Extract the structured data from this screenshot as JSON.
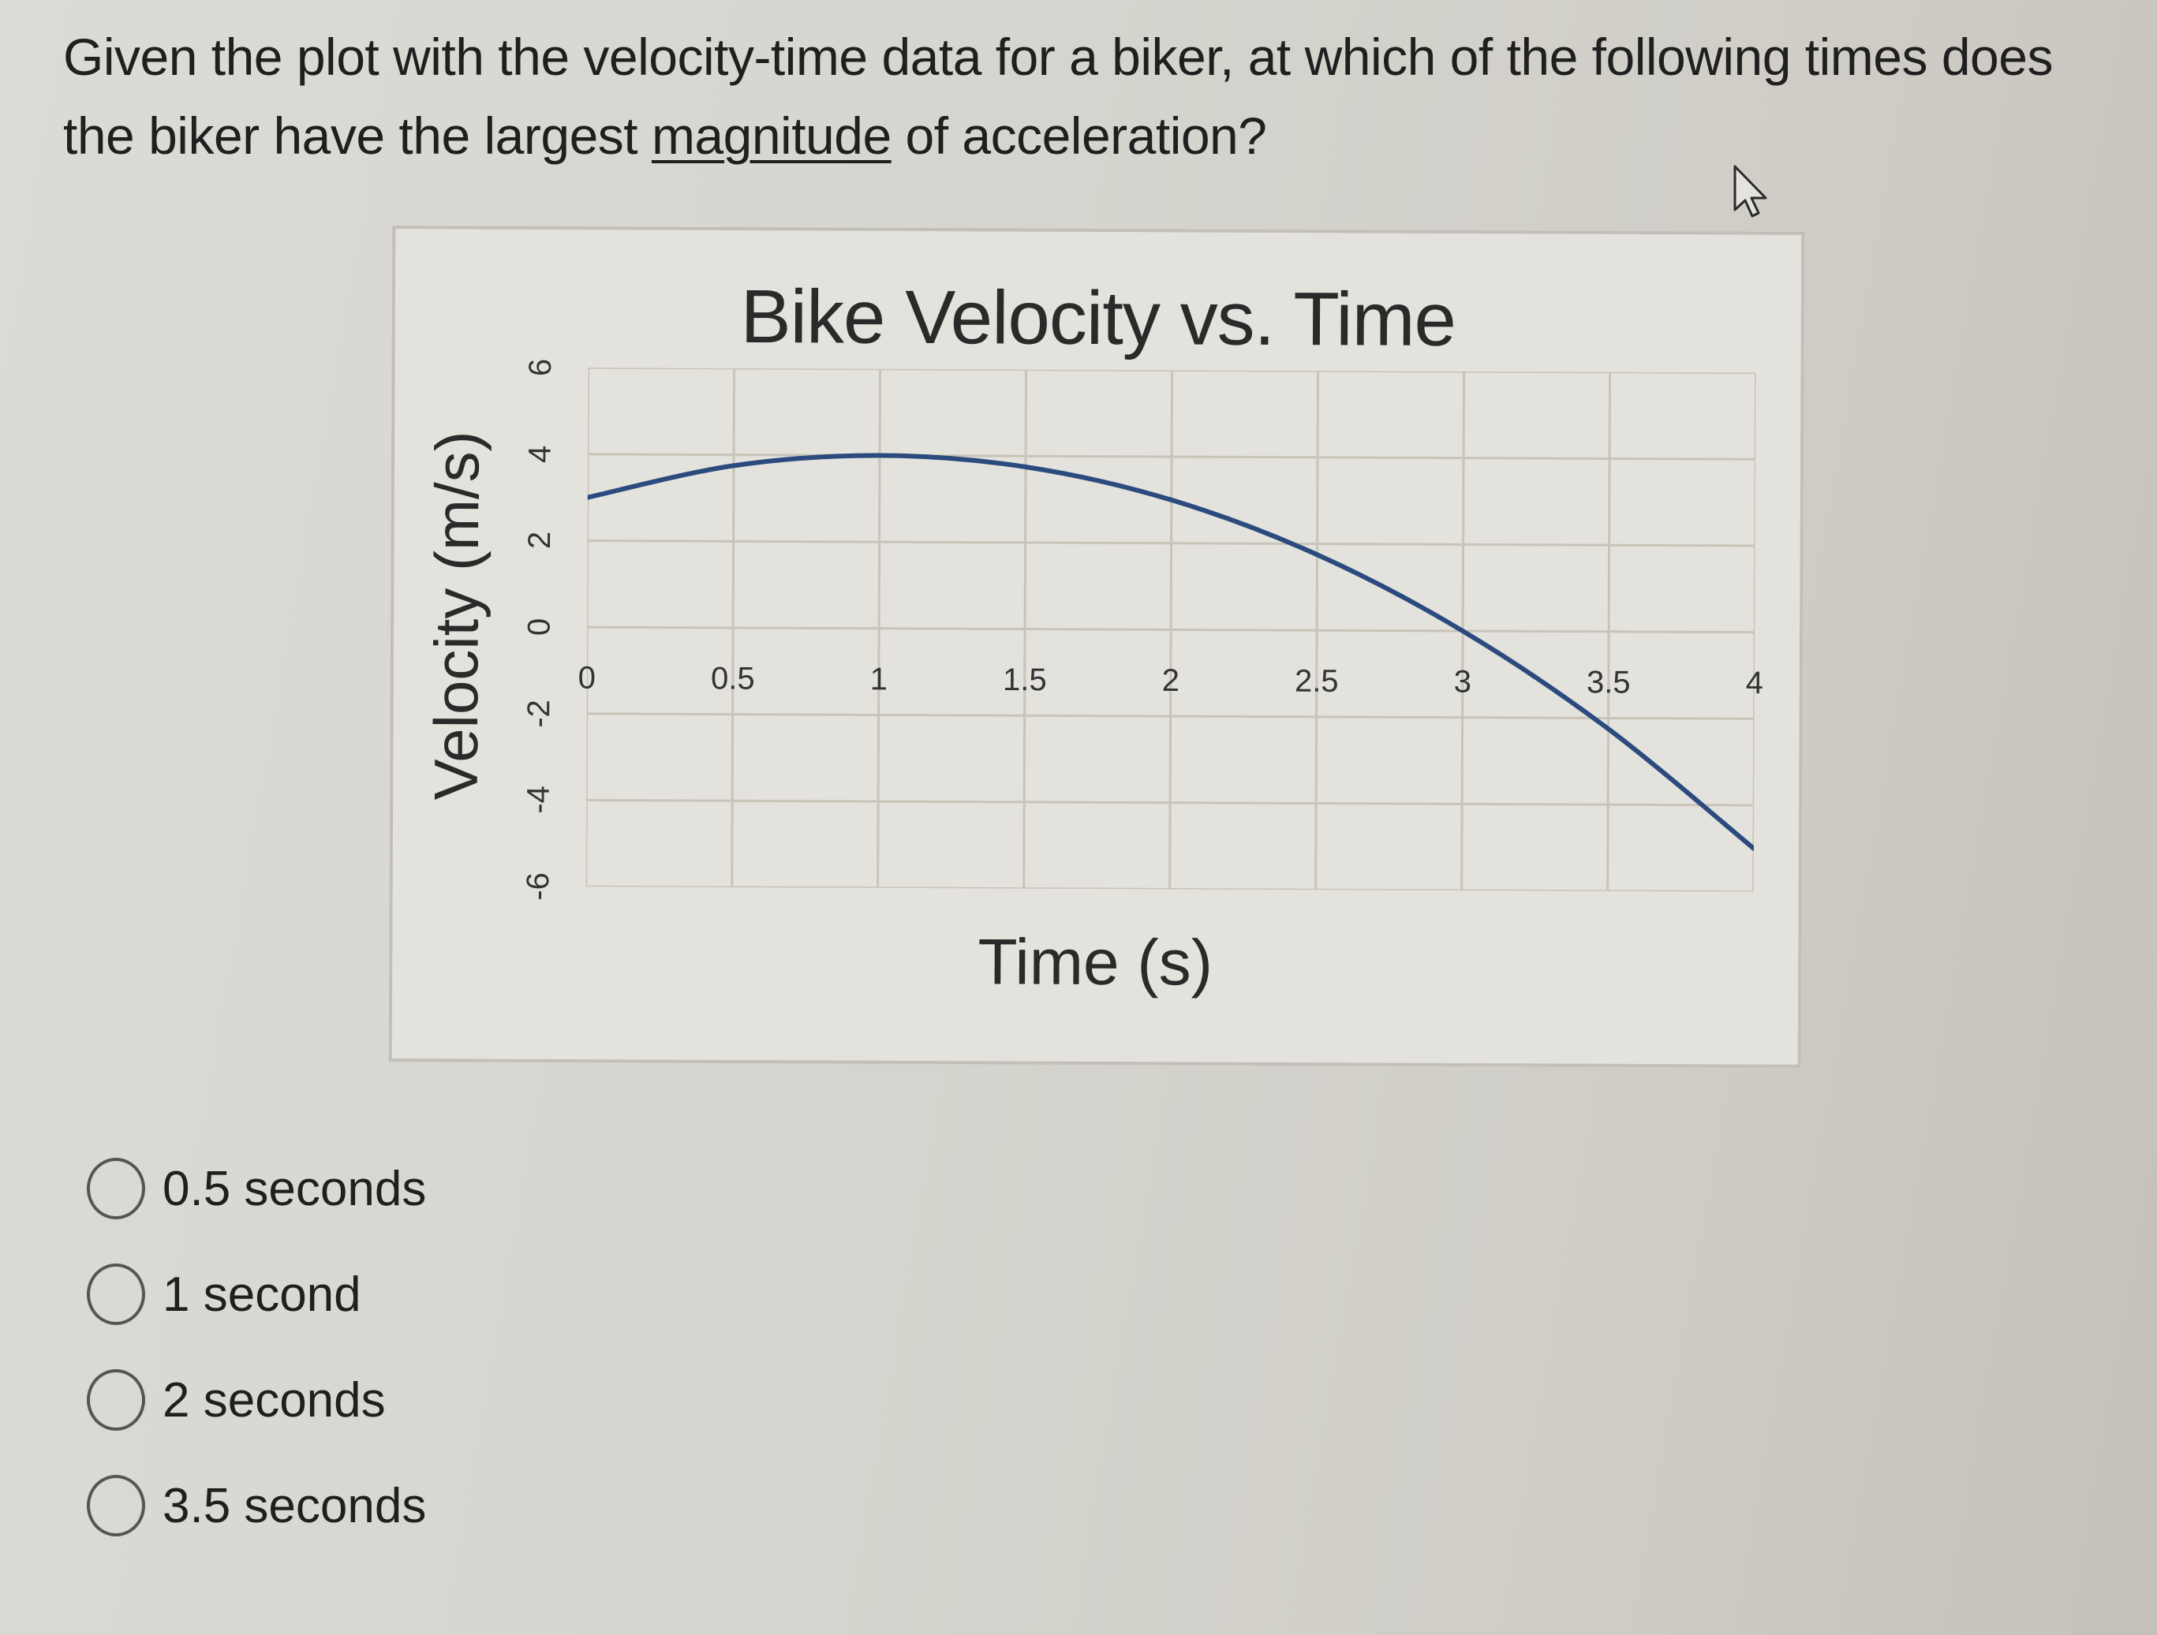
{
  "question": {
    "text_before": "Given the plot with the velocity-time data for a biker, at which of the following times does the biker have the largest ",
    "underlined": "magnitude",
    "text_after": " of acceleration?"
  },
  "options": [
    {
      "label": "0.5 seconds",
      "selected": false
    },
    {
      "label": "1 second",
      "selected": false
    },
    {
      "label": "2 seconds",
      "selected": false
    },
    {
      "label": "3.5 seconds",
      "selected": false
    }
  ],
  "colors": {
    "line": "#2b4a7e",
    "grid": "#c9c3b8",
    "frame": "#c2bfb8"
  },
  "chart_data": {
    "type": "line",
    "title": "Bike Velocity vs. Time",
    "xlabel": "Time (s)",
    "ylabel": "Velocity (m/s)",
    "x_ticks": [
      "0",
      "0.5",
      "1",
      "1.5",
      "2",
      "2.5",
      "3",
      "3.5",
      "4"
    ],
    "y_ticks": [
      "6",
      "4",
      "2",
      "0",
      "-2",
      "-4",
      "-6"
    ],
    "xlim": [
      0,
      4
    ],
    "ylim": [
      -6,
      6
    ],
    "grid": true,
    "legend": null,
    "x": [
      0,
      0.5,
      1,
      1.5,
      2,
      2.5,
      3,
      3.5,
      4
    ],
    "series": [
      {
        "name": "Velocity",
        "values": [
          3,
          3.75,
          4,
          3.75,
          3,
          1.75,
          0,
          -2.25,
          -5
        ]
      }
    ]
  }
}
